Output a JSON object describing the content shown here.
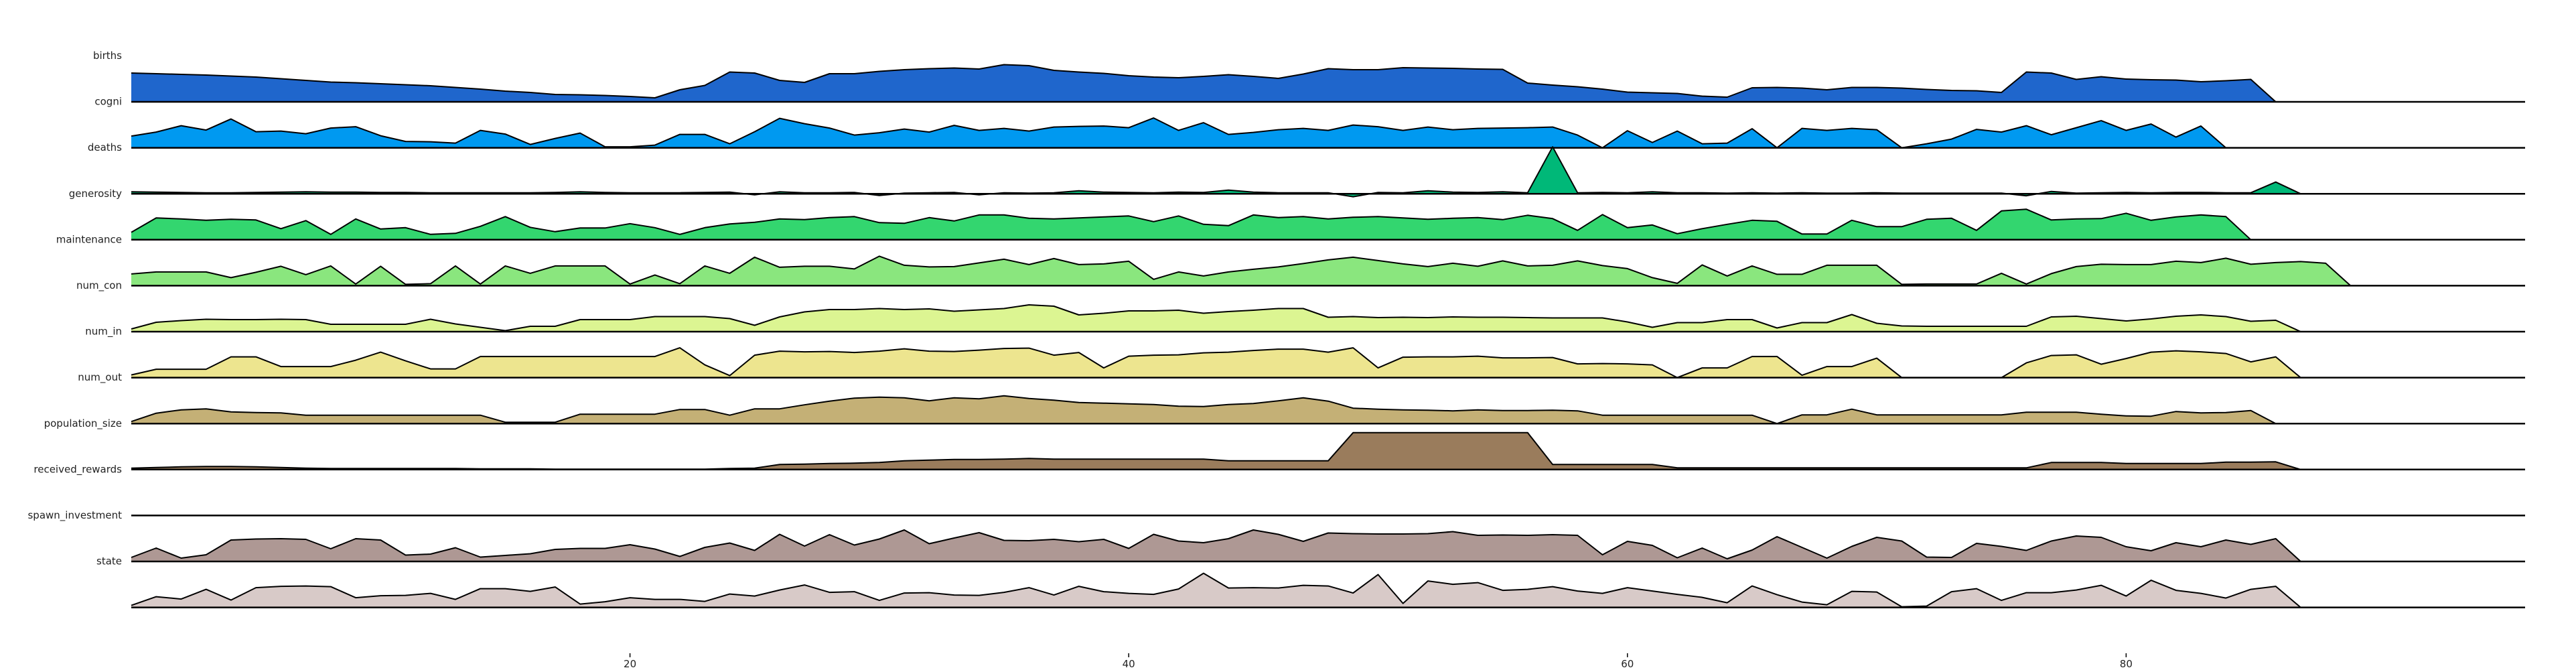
{
  "chart_data": {
    "type": "ridgeline",
    "x_range": [
      0,
      96
    ],
    "x_ticks": [
      20,
      40,
      60,
      80
    ],
    "series": [
      {
        "name": "births",
        "color": "#1f66cc",
        "values": [
          8.6,
          8.4,
          8.2,
          8.0,
          7.7,
          7.4,
          6.9,
          6.4,
          5.9,
          5.7,
          5.4,
          5.1,
          4.8,
          4.3,
          3.8,
          3.2,
          2.8,
          2.2,
          2.1,
          1.9,
          1.6,
          1.2,
          3.6,
          4.9,
          8.9,
          8.6,
          6.4,
          5.8,
          8.4,
          8.4,
          9.1,
          9.6,
          9.9,
          10.1,
          9.8,
          11.1,
          10.8,
          9.4,
          8.9,
          8.5,
          7.8,
          7.4,
          7.2,
          7.6,
          8.1,
          7.6,
          7.0,
          8.3,
          9.9,
          9.6,
          9.6,
          10.2,
          10.1,
          10.0,
          9.8,
          9.7,
          5.6,
          5.0,
          4.5,
          3.8,
          2.9,
          2.7,
          2.5,
          1.7,
          1.4,
          4.2,
          4.3,
          4.1,
          3.6,
          4.3,
          4.3,
          4.1,
          3.7,
          3.4,
          3.3,
          2.8,
          8.9,
          8.6,
          6.7,
          7.5,
          6.8,
          6.6,
          6.5,
          6.0,
          6.3,
          6.7,
          0.0
        ]
      },
      {
        "name": "cogni",
        "color": "#0099f0",
        "values": [
          3.5,
          4.7,
          6.6,
          5.3,
          8.6,
          4.8,
          5.0,
          4.2,
          5.9,
          6.3,
          3.6,
          1.9,
          1.8,
          1.4,
          5.2,
          4.1,
          1.0,
          2.8,
          4.4,
          0.3,
          0.3,
          0.8,
          4.0,
          4.0,
          1.2,
          4.8,
          8.8,
          7.2,
          5.9,
          3.8,
          4.5,
          5.6,
          4.7,
          6.7,
          5.2,
          5.8,
          5.0,
          6.2,
          6.4,
          6.5,
          6.0,
          8.9,
          5.2,
          7.5,
          4.0,
          4.6,
          5.4,
          5.8,
          5.2,
          6.8,
          6.3,
          5.2,
          6.2,
          5.4,
          5.8,
          5.9,
          6.0,
          6.2,
          3.8,
          0.0,
          5.1,
          1.6,
          5.0,
          1.2,
          1.4,
          5.7,
          0.0,
          5.8,
          5.2,
          5.8,
          5.4,
          0.0,
          1.2,
          2.6,
          5.5,
          4.7,
          6.6,
          3.9,
          6.0,
          8.1,
          5.2,
          7.1,
          3.2,
          6.5,
          0.0
        ]
      },
      {
        "name": "deaths",
        "color": "#00b878",
        "values": [
          0.6,
          0.5,
          0.4,
          0.3,
          0.3,
          0.4,
          0.5,
          0.6,
          0.5,
          0.5,
          0.4,
          0.4,
          0.3,
          0.3,
          0.3,
          0.3,
          0.3,
          0.4,
          0.6,
          0.4,
          0.3,
          0.3,
          0.3,
          0.4,
          0.5,
          -0.3,
          0.6,
          0.3,
          0.3,
          0.4,
          -0.5,
          0.2,
          0.3,
          0.4,
          -0.3,
          0.3,
          0.2,
          0.3,
          0.9,
          0.5,
          0.4,
          0.3,
          0.5,
          0.4,
          1.1,
          0.5,
          0.3,
          0.3,
          0.3,
          -0.9,
          0.4,
          0.3,
          0.9,
          0.5,
          0.4,
          0.6,
          0.3,
          14.0,
          0.3,
          0.4,
          0.3,
          0.6,
          0.3,
          0.3,
          0.2,
          0.3,
          0.2,
          0.3,
          0.2,
          0.2,
          0.3,
          0.2,
          0.2,
          0.2,
          0.2,
          0.2,
          -0.6,
          0.7,
          0.2,
          0.3,
          0.4,
          0.3,
          0.4,
          0.4,
          0.3,
          0.3,
          3.5,
          0.0
        ]
      },
      {
        "name": "generosity",
        "color": "#33d66f",
        "values": [
          2.2,
          6.5,
          6.2,
          5.8,
          6.1,
          5.9,
          3.3,
          5.7,
          1.6,
          6.2,
          3.2,
          3.6,
          1.6,
          1.9,
          4.0,
          6.9,
          3.7,
          2.4,
          3.5,
          3.5,
          4.8,
          3.6,
          1.6,
          3.6,
          4.7,
          5.2,
          6.2,
          6.0,
          6.6,
          6.9,
          5.1,
          4.9,
          6.6,
          5.6,
          7.4,
          7.4,
          6.4,
          6.2,
          6.5,
          6.8,
          7.1,
          5.4,
          7.1,
          4.6,
          4.2,
          7.4,
          6.6,
          6.9,
          6.2,
          6.7,
          6.9,
          6.5,
          6.1,
          6.4,
          6.6,
          6.0,
          7.3,
          6.3,
          2.8,
          7.5,
          3.6,
          4.4,
          1.8,
          3.3,
          4.6,
          5.8,
          5.5,
          1.7,
          1.7,
          5.8,
          3.9,
          3.9,
          6.1,
          6.4,
          2.8,
          8.6,
          9.1,
          5.9,
          6.2,
          6.3,
          7.9,
          5.8,
          6.8,
          7.4,
          6.9,
          0.0
        ]
      },
      {
        "name": "maintenance",
        "color": "#8ae67e",
        "values": [
          3.5,
          4.1,
          4.1,
          4.1,
          2.4,
          4.0,
          5.8,
          3.3,
          5.9,
          0.5,
          5.8,
          0.4,
          0.6,
          5.9,
          0.5,
          5.9,
          3.7,
          5.9,
          5.9,
          5.9,
          0.5,
          3.2,
          0.6,
          5.9,
          3.7,
          8.5,
          5.5,
          5.8,
          5.8,
          5.0,
          8.8,
          6.1,
          5.6,
          5.7,
          6.8,
          7.9,
          6.3,
          8.1,
          6.3,
          6.5,
          7.3,
          1.9,
          4.1,
          2.9,
          4.1,
          4.9,
          5.6,
          6.6,
          7.7,
          8.5,
          7.5,
          6.5,
          5.7,
          6.7,
          5.8,
          7.4,
          5.9,
          6.1,
          7.4,
          6.0,
          5.1,
          2.4,
          0.7,
          6.2,
          2.9,
          5.9,
          3.4,
          3.4,
          6.1,
          6.1,
          6.1,
          0.4,
          0.5,
          0.5,
          0.5,
          3.7,
          0.5,
          3.6,
          5.7,
          6.4,
          6.3,
          6.3,
          7.3,
          6.9,
          8.2,
          6.4,
          6.9,
          7.2,
          6.7,
          0.0
        ]
      },
      {
        "name": "num_con",
        "color": "#dcf592",
        "values": [
          0.8,
          2.8,
          3.3,
          3.7,
          3.6,
          3.6,
          3.7,
          3.6,
          2.2,
          2.2,
          2.2,
          2.2,
          3.7,
          2.3,
          1.3,
          0.3,
          1.6,
          1.6,
          3.6,
          3.6,
          3.6,
          4.5,
          4.5,
          4.5,
          3.9,
          1.9,
          4.4,
          5.9,
          6.6,
          6.6,
          6.9,
          6.6,
          6.8,
          6.1,
          6.5,
          6.9,
          8.0,
          7.6,
          5.0,
          5.5,
          6.2,
          6.2,
          6.4,
          5.5,
          6.0,
          6.4,
          6.9,
          6.9,
          4.3,
          4.5,
          4.2,
          4.3,
          4.2,
          4.4,
          4.3,
          4.3,
          4.2,
          4.1,
          4.1,
          4.1,
          2.9,
          1.3,
          2.7,
          2.7,
          3.6,
          3.6,
          1.1,
          2.7,
          2.7,
          5.1,
          2.5,
          1.7,
          1.6,
          1.6,
          1.6,
          1.6,
          1.6,
          4.4,
          4.6,
          3.9,
          3.2,
          3.8,
          4.6,
          5.0,
          4.5,
          3.1,
          3.4,
          0.0
        ]
      },
      {
        "name": "num_in",
        "color": "#ede58f",
        "values": [
          0.8,
          2.5,
          2.5,
          2.5,
          6.2,
          6.2,
          3.3,
          3.3,
          3.3,
          5.2,
          7.6,
          5.0,
          2.6,
          2.6,
          6.3,
          6.3,
          6.3,
          6.3,
          6.3,
          6.3,
          6.3,
          6.3,
          8.9,
          3.8,
          0.6,
          6.7,
          7.9,
          7.7,
          7.8,
          7.5,
          7.9,
          8.6,
          7.9,
          7.8,
          8.2,
          8.7,
          8.8,
          6.7,
          7.5,
          2.9,
          6.4,
          6.7,
          6.8,
          7.4,
          7.6,
          8.1,
          8.5,
          8.5,
          7.6,
          8.9,
          2.9,
          6.1,
          6.2,
          6.2,
          6.4,
          5.9,
          5.9,
          6.0,
          4.1,
          4.2,
          4.1,
          3.8,
          0.0,
          2.9,
          2.9,
          6.3,
          6.3,
          0.7,
          3.3,
          3.3,
          5.8,
          0.0,
          0.0,
          0.0,
          0.0,
          0.0,
          4.4,
          6.6,
          6.8,
          4.0,
          5.7,
          7.6,
          8.0,
          7.7,
          7.2,
          4.7,
          6.2,
          0.0
        ]
      },
      {
        "name": "num_out",
        "color": "#c4b076",
        "values": [
          0.6,
          3.1,
          4.1,
          4.4,
          3.5,
          3.3,
          3.2,
          2.5,
          2.5,
          2.5,
          2.5,
          2.5,
          2.5,
          2.5,
          2.5,
          0.4,
          0.4,
          0.4,
          2.8,
          2.8,
          2.8,
          2.8,
          4.2,
          4.2,
          2.5,
          4.4,
          4.4,
          5.6,
          6.7,
          7.6,
          7.9,
          7.7,
          6.8,
          7.7,
          7.4,
          8.3,
          7.5,
          7.0,
          6.3,
          6.1,
          5.9,
          5.7,
          5.2,
          5.1,
          5.7,
          6.0,
          6.8,
          7.7,
          6.7,
          4.6,
          4.3,
          4.1,
          4.0,
          3.8,
          4.1,
          3.9,
          3.9,
          4.0,
          3.8,
          2.5,
          2.5,
          2.5,
          2.5,
          2.5,
          2.5,
          2.5,
          0.0,
          2.6,
          2.6,
          4.3,
          2.6,
          2.6,
          2.6,
          2.6,
          2.6,
          2.6,
          3.4,
          3.4,
          3.4,
          2.8,
          2.3,
          2.2,
          3.6,
          3.2,
          3.3,
          3.9,
          0.0
        ]
      },
      {
        "name": "population_size",
        "color": "#9a7c5c",
        "values": [
          0.4,
          0.6,
          0.8,
          0.9,
          0.9,
          0.8,
          0.6,
          0.4,
          0.3,
          0.3,
          0.3,
          0.3,
          0.3,
          0.3,
          0.2,
          0.2,
          0.2,
          0.1,
          0.1,
          0.1,
          0.1,
          0.1,
          0.1,
          0.1,
          0.3,
          0.4,
          1.5,
          1.6,
          1.8,
          1.9,
          2.1,
          2.6,
          2.8,
          3.0,
          3.0,
          3.1,
          3.3,
          3.1,
          3.1,
          3.1,
          3.1,
          3.1,
          3.1,
          3.1,
          2.6,
          2.6,
          2.6,
          2.6,
          2.6,
          11.0,
          11.0,
          11.0,
          11.0,
          11.0,
          11.0,
          11.0,
          11.0,
          1.5,
          1.5,
          1.5,
          1.5,
          1.5,
          0.5,
          0.5,
          0.5,
          0.5,
          0.5,
          0.5,
          0.5,
          0.5,
          0.5,
          0.5,
          0.5,
          0.5,
          0.5,
          0.5,
          0.5,
          2.1,
          2.1,
          2.1,
          1.8,
          1.8,
          1.8,
          1.8,
          2.2,
          2.2,
          2.3,
          0.0
        ]
      },
      {
        "name": "received_rewards",
        "color": "#b8a0a0",
        "values": [
          0,
          0,
          0,
          0,
          0,
          0,
          0,
          0,
          0,
          0,
          0,
          0,
          0,
          0,
          0,
          0,
          0,
          0,
          0,
          0,
          0,
          0,
          0,
          0,
          0,
          0,
          0,
          0,
          0,
          0,
          0,
          0,
          0,
          0,
          0,
          0,
          0,
          0,
          0,
          0,
          0,
          0,
          0,
          0,
          0,
          0,
          0,
          0,
          0,
          0,
          0,
          0,
          0,
          0,
          0,
          0,
          0,
          0,
          0,
          0,
          0,
          0,
          0,
          0,
          0,
          0,
          0,
          0,
          0,
          0,
          0,
          0,
          0,
          0,
          0,
          0,
          0,
          0,
          0,
          0,
          0,
          0,
          0,
          0,
          0,
          0
        ]
      },
      {
        "name": "spawn_investment",
        "color": "#ae9894",
        "values": [
          1.2,
          4.0,
          1.0,
          2.0,
          6.4,
          6.7,
          6.8,
          6.6,
          3.8,
          6.8,
          6.4,
          1.9,
          2.2,
          4.1,
          1.3,
          1.8,
          2.3,
          3.6,
          3.9,
          3.9,
          5.0,
          3.7,
          1.5,
          4.2,
          5.5,
          3.3,
          8.1,
          4.6,
          8.0,
          4.9,
          6.7,
          9.4,
          5.3,
          7.0,
          8.6,
          6.3,
          6.2,
          6.6,
          5.9,
          6.6,
          3.9,
          8.1,
          6.1,
          5.6,
          6.8,
          9.4,
          8.1,
          6.0,
          8.5,
          8.3,
          8.2,
          8.2,
          8.3,
          8.9,
          7.8,
          7.9,
          7.8,
          8.0,
          7.8,
          2.0,
          6.0,
          4.8,
          1.1,
          4.0,
          0.8,
          3.4,
          7.4,
          4.2,
          1.0,
          4.5,
          7.2,
          6.1,
          1.3,
          1.2,
          5.4,
          4.5,
          3.3,
          6.1,
          7.6,
          7.2,
          4.4,
          3.2,
          5.6,
          4.4,
          6.4,
          5.1,
          6.8,
          0.0
        ]
      },
      {
        "name": "state",
        "color": "#d8cac8",
        "values": [
          0.6,
          3.2,
          2.5,
          5.4,
          2.2,
          5.9,
          6.3,
          6.4,
          6.2,
          2.9,
          3.5,
          3.6,
          4.2,
          2.4,
          5.6,
          5.6,
          4.8,
          6.1,
          1.0,
          1.7,
          2.9,
          2.4,
          2.4,
          1.8,
          4.0,
          3.4,
          5.2,
          6.7,
          4.5,
          4.7,
          2.1,
          4.3,
          4.4,
          3.7,
          3.6,
          4.5,
          5.9,
          3.7,
          6.3,
          4.7,
          4.2,
          3.9,
          5.5,
          10.2,
          5.8,
          5.9,
          5.8,
          6.6,
          6.4,
          4.3,
          9.8,
          1.2,
          7.9,
          6.9,
          7.4,
          5.1,
          5.4,
          6.2,
          4.9,
          4.2,
          5.9,
          4.9,
          3.9,
          3.0,
          1.4,
          6.4,
          3.8,
          1.6,
          0.8,
          4.8,
          4.6,
          0.2,
          0.4,
          4.7,
          5.6,
          2.1,
          4.4,
          4.4,
          5.2,
          6.6,
          3.4,
          8.1,
          5.1,
          4.2,
          2.8,
          5.4,
          6.3,
          0.0
        ]
      }
    ]
  }
}
